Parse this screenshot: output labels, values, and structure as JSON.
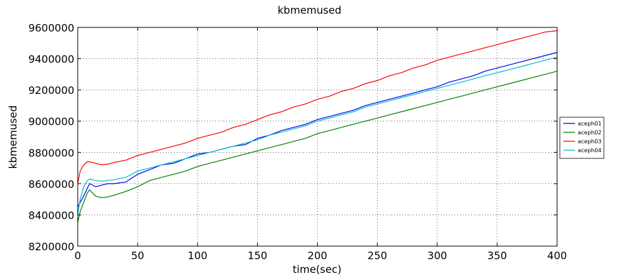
{
  "chart_data": {
    "type": "line",
    "title": "kbmemused",
    "xlabel": "time(sec)",
    "ylabel": "kbmemused",
    "xlim": [
      0,
      400
    ],
    "ylim": [
      8200000,
      9600000
    ],
    "x_ticks": [
      0,
      50,
      100,
      150,
      200,
      250,
      300,
      350,
      400
    ],
    "y_ticks": [
      8200000,
      8400000,
      8600000,
      8800000,
      9000000,
      9200000,
      9400000,
      9600000
    ],
    "grid": true,
    "legend_position": "right",
    "series": [
      {
        "name": "aceph01",
        "color": "#0000ff",
        "x": [
          0,
          2,
          5,
          8,
          10,
          15,
          20,
          25,
          30,
          40,
          50,
          60,
          70,
          80,
          90,
          100,
          110,
          120,
          130,
          140,
          150,
          160,
          170,
          180,
          190,
          200,
          210,
          220,
          230,
          240,
          250,
          260,
          270,
          280,
          290,
          300,
          310,
          320,
          330,
          340,
          350,
          360,
          370,
          380,
          390,
          400
        ],
        "y": [
          8450000,
          8480000,
          8520000,
          8570000,
          8600000,
          8580000,
          8590000,
          8600000,
          8600000,
          8610000,
          8660000,
          8690000,
          8720000,
          8730000,
          8760000,
          8790000,
          8800000,
          8820000,
          8840000,
          8850000,
          8890000,
          8910000,
          8940000,
          8960000,
          8980000,
          9010000,
          9030000,
          9050000,
          9070000,
          9100000,
          9120000,
          9140000,
          9160000,
          9180000,
          9200000,
          9220000,
          9250000,
          9270000,
          9290000,
          9320000,
          9340000,
          9360000,
          9380000,
          9400000,
          9420000,
          9440000
        ]
      },
      {
        "name": "aceph02",
        "color": "#008000",
        "x": [
          0,
          2,
          5,
          8,
          10,
          15,
          20,
          25,
          30,
          40,
          50,
          60,
          70,
          80,
          90,
          100,
          110,
          120,
          130,
          140,
          150,
          160,
          170,
          180,
          190,
          200,
          210,
          220,
          230,
          240,
          250,
          260,
          270,
          280,
          290,
          300,
          310,
          320,
          330,
          340,
          350,
          360,
          370,
          380,
          390,
          400
        ],
        "y": [
          8350000,
          8420000,
          8480000,
          8540000,
          8560000,
          8520000,
          8510000,
          8515000,
          8525000,
          8550000,
          8580000,
          8620000,
          8640000,
          8660000,
          8680000,
          8710000,
          8730000,
          8750000,
          8770000,
          8790000,
          8810000,
          8830000,
          8850000,
          8870000,
          8890000,
          8920000,
          8940000,
          8960000,
          8980000,
          9000000,
          9020000,
          9040000,
          9060000,
          9080000,
          9100000,
          9120000,
          9140000,
          9160000,
          9180000,
          9200000,
          9220000,
          9240000,
          9260000,
          9280000,
          9300000,
          9320000
        ]
      },
      {
        "name": "aceph03",
        "color": "#ff0000",
        "x": [
          0,
          2,
          5,
          8,
          10,
          15,
          20,
          25,
          30,
          40,
          50,
          60,
          70,
          80,
          90,
          100,
          110,
          120,
          130,
          140,
          150,
          160,
          170,
          180,
          190,
          200,
          210,
          220,
          230,
          240,
          250,
          260,
          270,
          280,
          290,
          300,
          310,
          320,
          330,
          340,
          350,
          360,
          370,
          380,
          390,
          400
        ],
        "y": [
          8600000,
          8680000,
          8720000,
          8740000,
          8740000,
          8730000,
          8720000,
          8725000,
          8735000,
          8750000,
          8780000,
          8800000,
          8820000,
          8840000,
          8860000,
          8890000,
          8910000,
          8930000,
          8960000,
          8980000,
          9010000,
          9040000,
          9060000,
          9090000,
          9110000,
          9140000,
          9160000,
          9190000,
          9210000,
          9240000,
          9260000,
          9290000,
          9310000,
          9340000,
          9360000,
          9390000,
          9410000,
          9430000,
          9450000,
          9470000,
          9490000,
          9510000,
          9530000,
          9550000,
          9570000,
          9580000
        ]
      },
      {
        "name": "aceph04",
        "color": "#00bfbf",
        "x": [
          0,
          2,
          5,
          8,
          10,
          15,
          20,
          25,
          30,
          40,
          50,
          60,
          70,
          80,
          90,
          100,
          110,
          120,
          130,
          140,
          150,
          160,
          170,
          180,
          190,
          200,
          210,
          220,
          230,
          240,
          250,
          260,
          270,
          280,
          290,
          300,
          310,
          320,
          330,
          340,
          350,
          360,
          370,
          380,
          390,
          400
        ],
        "y": [
          8400000,
          8500000,
          8580000,
          8620000,
          8630000,
          8620000,
          8615000,
          8620000,
          8625000,
          8640000,
          8680000,
          8700000,
          8720000,
          8740000,
          8760000,
          8780000,
          8800000,
          8820000,
          8840000,
          8860000,
          8880000,
          8910000,
          8930000,
          8950000,
          8970000,
          9000000,
          9020000,
          9040000,
          9060000,
          9090000,
          9110000,
          9130000,
          9150000,
          9170000,
          9190000,
          9210000,
          9230000,
          9250000,
          9270000,
          9290000,
          9310000,
          9330000,
          9350000,
          9370000,
          9390000,
          9410000
        ]
      }
    ]
  }
}
